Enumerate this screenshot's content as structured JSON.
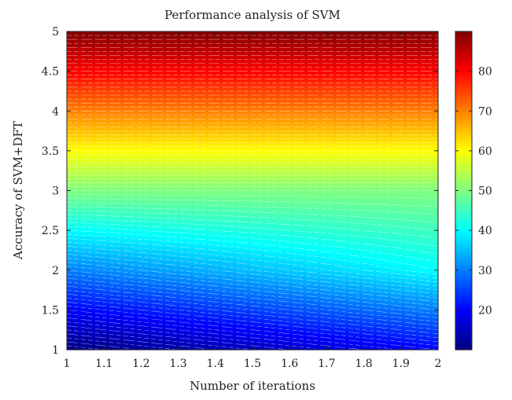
{
  "chart_data": {
    "type": "heatmap",
    "subtype": "filled-contour",
    "title": "Performance analysis of SVM",
    "xlabel": "Number of iterations",
    "ylabel": "Accuracy of SVM+DFT",
    "xlim": [
      1,
      2
    ],
    "ylim": [
      1,
      5
    ],
    "x_ticks": [
      "1",
      "1.1",
      "1.2",
      "1.3",
      "1.4",
      "1.5",
      "1.6",
      "1.7",
      "1.8",
      "1.9",
      "2"
    ],
    "y_ticks": [
      "1",
      "1.5",
      "2",
      "2.5",
      "3",
      "3.5",
      "4",
      "4.5",
      "5"
    ],
    "colorbar": {
      "range": [
        10,
        90
      ],
      "ticks": [
        "20",
        "30",
        "40",
        "50",
        "60",
        "70",
        "80"
      ],
      "colormap": "jet"
    },
    "z_anchors": {
      "y": [
        1,
        2,
        3,
        4,
        5
      ],
      "z_at_x_1": [
        10,
        30,
        50,
        70,
        90
      ],
      "z_at_x_2": [
        20,
        40,
        50,
        70,
        90
      ]
    },
    "grid": false,
    "legend": "colorbar-right"
  }
}
